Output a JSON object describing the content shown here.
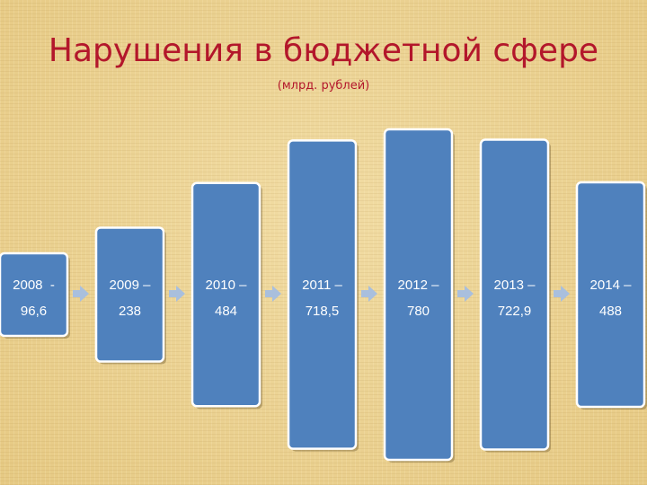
{
  "title": "Нарушения в бюджетной сфере",
  "subtitle": "(млрд. рублей)",
  "colors": {
    "title": "#b3172b",
    "bar": "#4f81bd",
    "bar_border": "#ffffff",
    "arrow": "#a9bfdd",
    "label": "#ffffff"
  },
  "chart_data": {
    "type": "bar",
    "title": "Нарушения в бюджетной сфере",
    "subtitle": "(млрд. рублей)",
    "categories": [
      "2008",
      "2009",
      "2010",
      "2011",
      "2012",
      "2013",
      "2014"
    ],
    "values": [
      96.6,
      238,
      484,
      718.5,
      780,
      722.9,
      488
    ],
    "labels": [
      [
        "2008  -",
        "96,6"
      ],
      [
        "2009 –",
        "238"
      ],
      [
        "2010 –",
        "484"
      ],
      [
        "2011 –",
        "718,5"
      ],
      [
        "2012 –",
        "780"
      ],
      [
        "2013 –",
        "722,9"
      ],
      [
        "2014 –",
        "488"
      ]
    ],
    "grid": false,
    "legend": "none"
  }
}
